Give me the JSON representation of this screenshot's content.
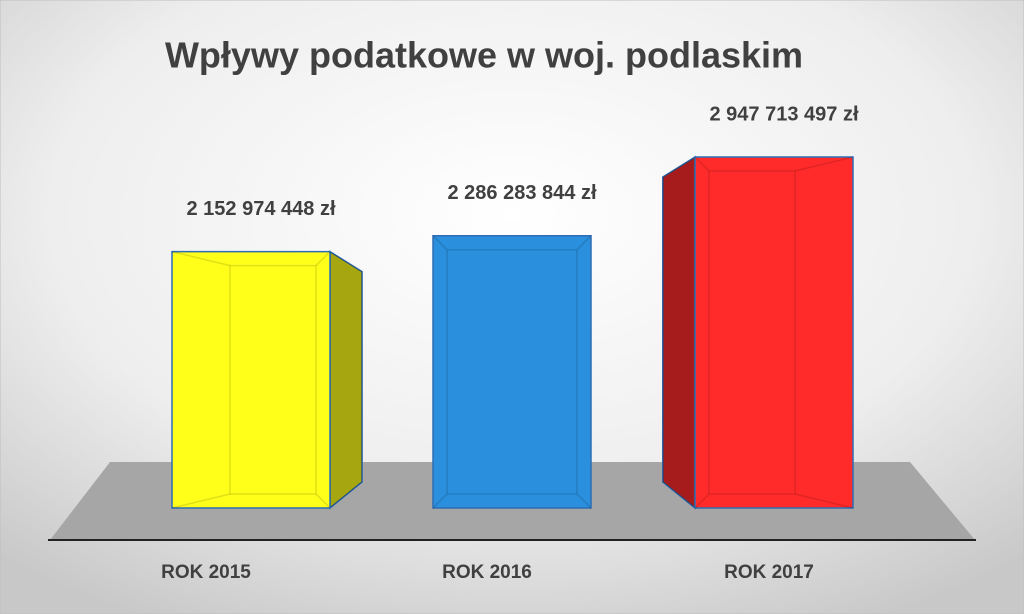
{
  "chart_data": {
    "type": "bar3d",
    "title": "Wpływy podatkowe w woj. podlaskim",
    "categories": [
      "ROK 2015",
      "ROK 2016",
      "ROK 2017"
    ],
    "values": [
      2152974448,
      2286283844,
      2947713497
    ],
    "value_labels": [
      "2 152 974 448 zł",
      "2 286 283 844 zł",
      "2 947 713 497 zł"
    ],
    "colors": [
      "#ffff1a",
      "#2a8fdc",
      "#ff2a2a"
    ],
    "grid": false
  }
}
